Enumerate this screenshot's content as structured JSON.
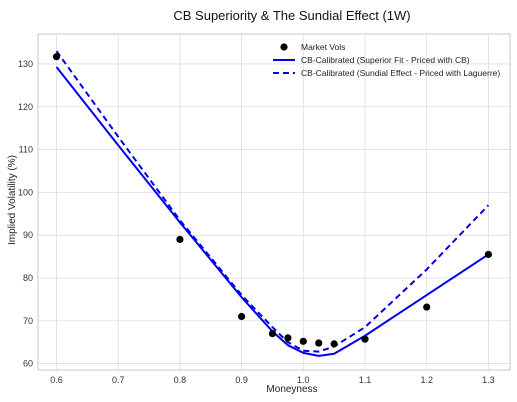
{
  "chart_data": {
    "type": "line",
    "title": "CB Superiority & The Sundial Effect (1W)",
    "xlabel": "Moneyness",
    "ylabel": "Implied Volatility (%)",
    "xlim": [
      0.57,
      1.335
    ],
    "ylim": [
      58.5,
      137
    ],
    "xticks": [
      0.6,
      0.7,
      0.8,
      0.9,
      1.0,
      1.1,
      1.2,
      1.3
    ],
    "xtick_labels": [
      "0.6",
      "0.7",
      "0.8",
      "0.9",
      "1.0",
      "1.1",
      "1.2",
      "1.3"
    ],
    "yticks": [
      60,
      70,
      80,
      90,
      100,
      110,
      120,
      130
    ],
    "ytick_labels": [
      "60",
      "70",
      "80",
      "90",
      "100",
      "110",
      "120",
      "130"
    ],
    "grid": true,
    "legend_position": "top-right",
    "series": [
      {
        "name": "Market Vols",
        "style": "scatter",
        "color": "#000000",
        "x": [
          0.6,
          0.8,
          0.9,
          0.95,
          0.975,
          1.0,
          1.025,
          1.05,
          1.1,
          1.2,
          1.3
        ],
        "y": [
          131.7,
          89.0,
          71.0,
          67.0,
          66.0,
          65.2,
          64.8,
          64.6,
          65.7,
          73.2,
          85.5
        ]
      },
      {
        "name": "CB-Calibrated (Superior Fit - Priced with CB)",
        "style": "solid",
        "color": "#0000ee",
        "x": [
          0.6,
          0.7,
          0.8,
          0.9,
          0.95,
          0.975,
          1.0,
          1.025,
          1.05,
          1.1,
          1.2,
          1.3
        ],
        "y": [
          129.3,
          111.0,
          93.0,
          75.5,
          67.5,
          64.3,
          62.5,
          61.8,
          62.3,
          66.5,
          76.0,
          85.5
        ]
      },
      {
        "name": "CB-Calibrated (Sundial Effect - Priced with Laguerre)",
        "style": "dashed",
        "color": "#0000ee",
        "x": [
          0.6,
          0.7,
          0.8,
          0.9,
          0.95,
          0.975,
          1.0,
          1.025,
          1.05,
          1.1,
          1.2,
          1.3
        ],
        "y": [
          133.0,
          113.0,
          93.5,
          76.0,
          68.5,
          65.0,
          63.0,
          62.8,
          64.0,
          68.5,
          82.0,
          97.0
        ]
      }
    ]
  }
}
